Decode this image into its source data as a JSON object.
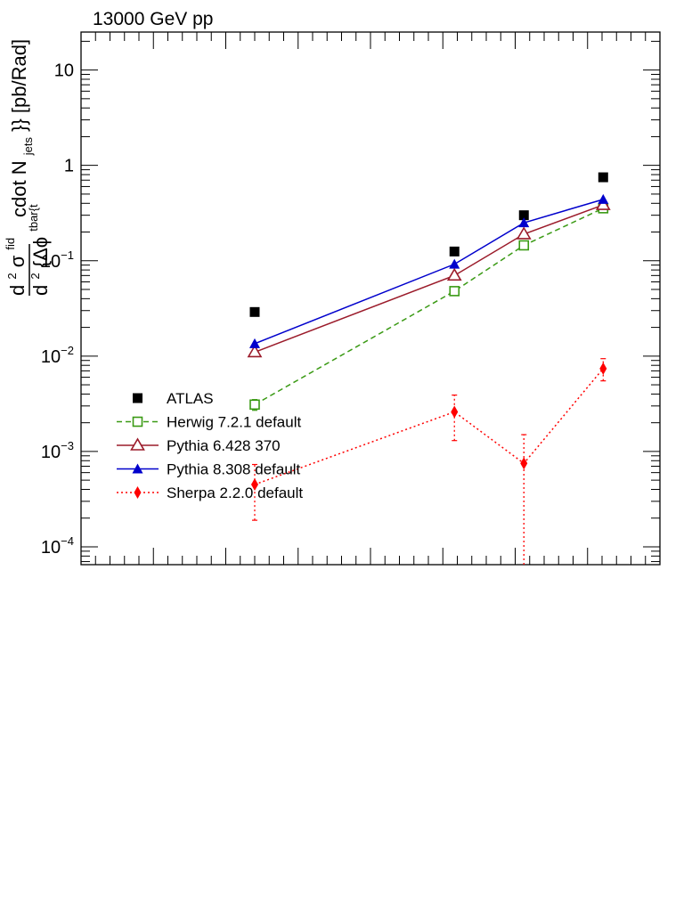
{
  "chart_data": {
    "type": "line",
    "title": "13000 GeV pp",
    "ylabel": "d^{2}σ^{fid}/d^{2} {Δϕ^{tbar{t}} cdot N_{jets}}} [pb/Rad]",
    "ylabel_parts": {
      "main": "d",
      "sup1": "2",
      "sigma": "σ",
      "fid": "fid",
      "den_main": "d",
      "den_sup": "2",
      "den_brace": "{Δϕ",
      "tbar": "tbar{t",
      "cdot": "cdot N",
      "jets": "jets",
      "tail": "}} [pb/Rad]"
    },
    "y_scale": "log",
    "ylim": [
      6.5e-05,
      25
    ],
    "x_ticks_labeled": false,
    "y_ticks": [
      {
        "base": "10",
        "exp": "−4",
        "value": 0.0001
      },
      {
        "base": "10",
        "exp": "−3",
        "value": 0.001
      },
      {
        "base": "10",
        "exp": "−2",
        "value": 0.01
      },
      {
        "base": "10",
        "exp": "−1",
        "value": 0.1
      },
      {
        "base": "1",
        "exp": "",
        "value": 1
      },
      {
        "base": "10",
        "exp": "",
        "value": 10
      }
    ],
    "series": [
      {
        "name": "ATLAS",
        "marker": "square-filled",
        "line": "none",
        "color": "#000000",
        "x": [
          0.3,
          0.645,
          0.765,
          0.902
        ],
        "y": [
          0.029,
          0.125,
          0.3,
          0.75
        ]
      },
      {
        "name": "Herwig 7.2.1 default",
        "marker": "square-open",
        "line": "dashed",
        "color": "#3a9a14",
        "x": [
          0.3,
          0.645,
          0.765,
          0.902
        ],
        "y": [
          0.0031,
          0.048,
          0.145,
          0.355
        ],
        "yerr": [
          0.0004,
          0.002,
          0.005,
          0.01
        ]
      },
      {
        "name": "Pythia 6.428 370",
        "marker": "triangle-open",
        "line": "solid",
        "color": "#9b1b2a",
        "x": [
          0.3,
          0.645,
          0.765,
          0.902
        ],
        "y": [
          0.011,
          0.07,
          0.19,
          0.385
        ]
      },
      {
        "name": "Pythia 8.308 default",
        "marker": "triangle-filled",
        "line": "solid",
        "color": "#0000cc",
        "x": [
          0.3,
          0.645,
          0.765,
          0.902
        ],
        "y": [
          0.0135,
          0.092,
          0.25,
          0.44
        ]
      },
      {
        "name": "Sherpa 2.2.0 default",
        "marker": "diamond-filled",
        "line": "dotted",
        "color": "#ff0000",
        "x": [
          0.3,
          0.645,
          0.765,
          0.902
        ],
        "y": [
          0.00045,
          0.0026,
          0.00075,
          0.0074
        ],
        "yerr_low": [
          0.00026,
          0.0013,
          0.0007,
          0.0019
        ],
        "yerr_high": [
          0.00028,
          0.0013,
          0.00075,
          0.002
        ]
      }
    ],
    "legend_position": "lower-left",
    "grid": false
  }
}
